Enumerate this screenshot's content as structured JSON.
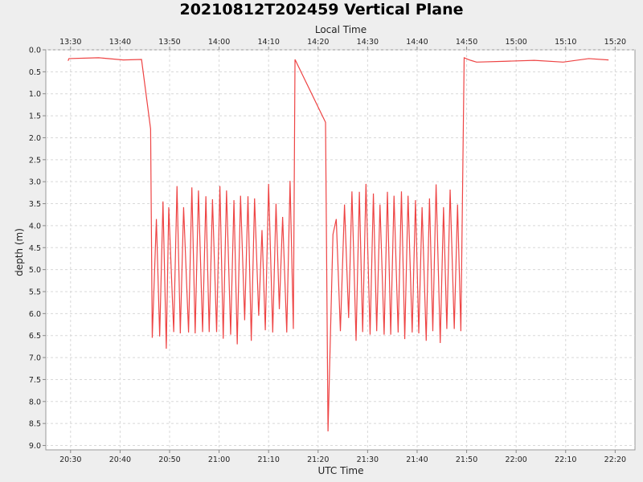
{
  "chart_data": {
    "type": "line",
    "title": "20210812T202459 Vertical Plane",
    "xlabel": "UTC Time",
    "x2label": "Local Time",
    "ylabel": "depth (m)",
    "y_inverted": true,
    "ylim": [
      0.0,
      9.1
    ],
    "xlim_utc": [
      "20:25",
      "22:24"
    ],
    "grid": true,
    "x_ticks_utc": [
      "20:30",
      "20:40",
      "20:50",
      "21:00",
      "21:10",
      "21:20",
      "21:30",
      "21:40",
      "21:50",
      "22:00",
      "22:10",
      "22:20"
    ],
    "x_ticks_local": [
      "13:30",
      "13:40",
      "13:50",
      "14:00",
      "14:10",
      "14:20",
      "14:30",
      "14:40",
      "14:50",
      "15:00",
      "15:10",
      "15:20"
    ],
    "y_ticks": [
      "0.0",
      "0.5",
      "1.0",
      "1.5",
      "2.0",
      "2.5",
      "3.0",
      "3.5",
      "4.0",
      "4.5",
      "5.0",
      "5.5",
      "6.0",
      "6.5",
      "7.0",
      "7.5",
      "8.0",
      "8.5",
      "9.0"
    ],
    "color": "#ee4444",
    "series": [
      {
        "x": [
          "20:29:30",
          "20:29:40",
          "20:35:40",
          "20:40:40",
          "20:44:20",
          "20:46:10",
          "20:46:30",
          "20:47:20",
          "20:48:00",
          "20:48:40",
          "20:49:20",
          "20:49:50",
          "20:50:50",
          "20:51:30",
          "20:52:10",
          "20:52:50",
          "20:53:50",
          "20:54:30",
          "20:55:10",
          "20:55:50",
          "20:56:40",
          "20:57:20",
          "20:58:00",
          "20:58:40",
          "20:59:30",
          "21:00:10",
          "21:00:50",
          "21:01:30",
          "21:02:20",
          "21:03:00",
          "21:03:40",
          "21:04:20",
          "21:05:10",
          "21:05:50",
          "21:06:30",
          "21:07:10",
          "21:08:00",
          "21:08:40",
          "21:09:20",
          "21:10:00",
          "21:10:50",
          "21:11:30",
          "21:12:10",
          "21:12:50",
          "21:13:40",
          "21:14:20",
          "21:15:00",
          "21:15:20",
          "21:21:30",
          "21:22:00",
          "21:23:00",
          "21:23:40",
          "21:24:30",
          "21:25:20",
          "21:26:10",
          "21:26:50",
          "21:27:40",
          "21:28:20",
          "21:29:00",
          "21:29:40",
          "21:30:30",
          "21:31:10",
          "21:31:50",
          "21:32:30",
          "21:33:20",
          "21:34:00",
          "21:34:40",
          "21:35:20",
          "21:36:10",
          "21:36:50",
          "21:37:30",
          "21:38:10",
          "21:39:00",
          "21:39:40",
          "21:40:20",
          "21:41:00",
          "21:41:50",
          "21:42:30",
          "21:43:10",
          "21:43:50",
          "21:44:40",
          "21:45:20",
          "21:46:00",
          "21:46:40",
          "21:47:30",
          "21:48:10",
          "21:48:50",
          "21:49:30",
          "21:50:20",
          "21:50:50",
          "21:52:00",
          "21:58:00",
          "22:03:40",
          "22:09:30",
          "22:14:40",
          "22:18:40"
        ],
        "y": [
          0.25,
          0.2,
          0.18,
          0.23,
          0.22,
          1.8,
          6.55,
          3.85,
          6.52,
          3.45,
          6.8,
          3.58,
          6.42,
          3.1,
          6.45,
          3.58,
          6.43,
          3.13,
          6.45,
          3.2,
          6.42,
          3.33,
          6.42,
          3.4,
          6.42,
          3.1,
          6.57,
          3.2,
          6.48,
          3.42,
          6.7,
          3.32,
          6.15,
          3.33,
          6.62,
          3.38,
          6.05,
          4.1,
          6.38,
          3.05,
          6.43,
          3.5,
          5.9,
          3.8,
          6.43,
          2.98,
          6.35,
          0.22,
          1.65,
          8.68,
          4.2,
          3.85,
          6.4,
          3.52,
          6.1,
          3.22,
          6.62,
          3.23,
          6.42,
          3.05,
          6.48,
          3.27,
          6.4,
          3.52,
          6.48,
          3.23,
          6.48,
          3.32,
          6.43,
          3.22,
          6.58,
          3.32,
          6.43,
          3.42,
          6.45,
          3.58,
          6.62,
          3.38,
          6.4,
          3.06,
          6.67,
          3.58,
          6.35,
          3.18,
          6.35,
          3.52,
          6.4,
          0.18,
          0.22,
          0.24,
          0.28,
          0.26,
          0.24,
          0.28,
          0.2,
          0.23
        ]
      }
    ]
  }
}
